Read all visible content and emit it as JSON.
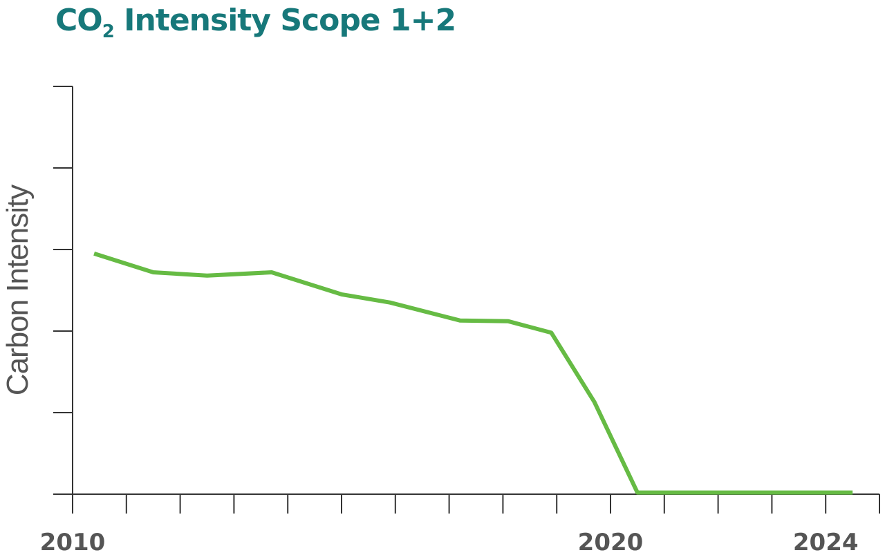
{
  "title": {
    "prefix": "CO",
    "subscript": "2",
    "suffix": " Intensity Scope 1+2"
  },
  "chart_data": {
    "type": "line",
    "title": "CO2 Intensity Scope 1+2",
    "xlabel": "",
    "ylabel": "Carbon Intensity",
    "x_tick_labels": [
      "2010",
      "2020",
      "2024"
    ],
    "x": [
      2010.4,
      2011.5,
      2012.5,
      2013.7,
      2015.0,
      2015.9,
      2017.2,
      2018.1,
      2018.9,
      2019.7,
      2020.5,
      2021.5,
      2022.5,
      2023.5,
      2024.5
    ],
    "xlim": [
      2010,
      2025
    ],
    "ylim": [
      0,
      5
    ],
    "yticks": [
      0,
      1,
      2,
      3,
      4,
      5
    ],
    "series": [
      {
        "name": "",
        "color": "#66bb44",
        "values": [
          2.95,
          2.72,
          2.68,
          2.72,
          2.45,
          2.35,
          2.13,
          2.12,
          1.98,
          1.13,
          0.02,
          0.02,
          0.02,
          0.02,
          0.02
        ]
      }
    ],
    "grid": false,
    "legend": "none"
  }
}
